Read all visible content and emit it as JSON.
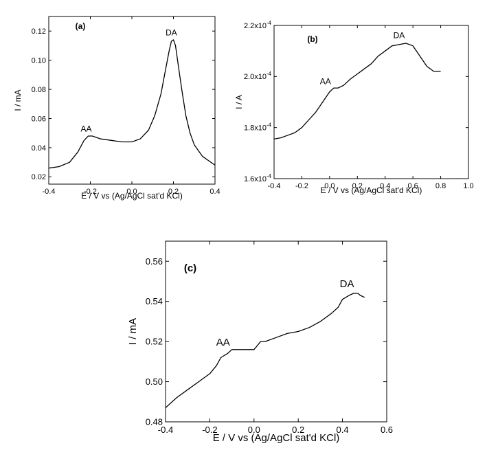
{
  "chart_data": [
    {
      "type": "line",
      "panel_label": "(a)",
      "xlabel": "E / V vs (Ag/AgCl sat'd KCl)",
      "ylabel": "I / mA",
      "xlim": [
        -0.4,
        0.4
      ],
      "ylim": [
        0.015,
        0.13
      ],
      "xticks": [
        -0.4,
        -0.2,
        0.0,
        0.2,
        0.4
      ],
      "xtick_labels": [
        "-0.4",
        "-0.2",
        "0.0",
        "0.2",
        "0.4"
      ],
      "yticks": [
        0.02,
        0.04,
        0.06,
        0.08,
        0.1,
        0.12
      ],
      "ytick_labels": [
        "0.02",
        "0.04",
        "0.06",
        "0.08",
        "0.10",
        "0.12"
      ],
      "grid": false,
      "annotations": [
        {
          "text": "AA",
          "x": -0.22,
          "y": 0.051
        },
        {
          "text": "DA",
          "x": 0.19,
          "y": 0.117
        }
      ],
      "series": [
        {
          "x": [
            -0.4,
            -0.35,
            -0.3,
            -0.26,
            -0.23,
            -0.21,
            -0.19,
            -0.15,
            -0.1,
            -0.05,
            0.0,
            0.04,
            0.08,
            0.11,
            0.14,
            0.16,
            0.18,
            0.19,
            0.2,
            0.21,
            0.22,
            0.24,
            0.26,
            0.28,
            0.3,
            0.34,
            0.4
          ],
          "y": [
            0.026,
            0.027,
            0.03,
            0.037,
            0.045,
            0.048,
            0.048,
            0.046,
            0.045,
            0.044,
            0.044,
            0.046,
            0.052,
            0.062,
            0.077,
            0.092,
            0.107,
            0.113,
            0.114,
            0.11,
            0.1,
            0.08,
            0.062,
            0.05,
            0.042,
            0.034,
            0.028
          ]
        }
      ]
    },
    {
      "type": "line",
      "panel_label": "(b)",
      "xlabel": "E / V vs (Ag/AgCl sat'd KCl)",
      "ylabel": "I / A",
      "xlim": [
        -0.4,
        1.0
      ],
      "ylim": [
        0.00016,
        0.00022
      ],
      "xticks": [
        -0.4,
        -0.2,
        0.0,
        0.2,
        0.4,
        0.6,
        0.8,
        1.0
      ],
      "xtick_labels": [
        "-0.4",
        "-0.2",
        "0.0",
        "0.2",
        "0.4",
        "0.6",
        "0.8",
        "1.0"
      ],
      "yticks": [
        0.00016,
        0.00018,
        0.0002,
        0.00022
      ],
      "ytick_mantissas": [
        "1.6x10",
        "1.8x10",
        "2.0x10",
        "2.2x10"
      ],
      "ytick_exponents": [
        "-4",
        "-4",
        "-4",
        "-4"
      ],
      "grid": false,
      "annotations": [
        {
          "text": "AA",
          "x": -0.03,
          "y": 0.000197
        },
        {
          "text": "DA",
          "x": 0.5,
          "y": 0.000215
        }
      ],
      "series": [
        {
          "x": [
            -0.4,
            -0.35,
            -0.3,
            -0.25,
            -0.2,
            -0.15,
            -0.1,
            -0.05,
            0.0,
            0.03,
            0.06,
            0.1,
            0.15,
            0.2,
            0.25,
            0.3,
            0.35,
            0.4,
            0.45,
            0.5,
            0.55,
            0.6,
            0.65,
            0.7,
            0.75,
            0.8
          ],
          "y": [
            0.0001755,
            0.000176,
            0.000177,
            0.000178,
            0.00018,
            0.000183,
            0.000186,
            0.00019,
            0.000194,
            0.0001955,
            0.0001955,
            0.0001965,
            0.000199,
            0.000201,
            0.000203,
            0.000205,
            0.000208,
            0.00021,
            0.000212,
            0.0002125,
            0.000213,
            0.000212,
            0.000208,
            0.000204,
            0.000202,
            0.000202
          ]
        }
      ]
    },
    {
      "type": "line",
      "panel_label": "(c)",
      "xlabel": "E / V vs (Ag/AgCl sat'd KCl)",
      "ylabel": "I / mA",
      "xlim": [
        -0.4,
        0.6
      ],
      "ylim": [
        0.48,
        0.57
      ],
      "xticks": [
        -0.4,
        -0.2,
        0.0,
        0.2,
        0.4,
        0.6
      ],
      "xtick_labels": [
        "-0.4",
        "-0.2",
        "0.0",
        "0.2",
        "0.4",
        "0.6"
      ],
      "yticks": [
        0.48,
        0.5,
        0.52,
        0.54,
        0.56
      ],
      "ytick_labels": [
        "0.48",
        "0.50",
        "0.52",
        "0.54",
        "0.56"
      ],
      "grid": false,
      "annotations": [
        {
          "text": "AA",
          "x": -0.14,
          "y": 0.518
        },
        {
          "text": "DA",
          "x": 0.42,
          "y": 0.547
        }
      ],
      "series": [
        {
          "x": [
            -0.4,
            -0.35,
            -0.3,
            -0.25,
            -0.2,
            -0.17,
            -0.15,
            -0.12,
            -0.1,
            -0.05,
            0.0,
            0.03,
            0.05,
            0.1,
            0.15,
            0.2,
            0.25,
            0.3,
            0.35,
            0.38,
            0.4,
            0.43,
            0.45,
            0.47,
            0.48,
            0.5
          ],
          "y": [
            0.487,
            0.492,
            0.496,
            0.5,
            0.504,
            0.508,
            0.512,
            0.514,
            0.516,
            0.516,
            0.516,
            0.52,
            0.52,
            0.522,
            0.524,
            0.525,
            0.527,
            0.53,
            0.534,
            0.537,
            0.541,
            0.543,
            0.544,
            0.544,
            0.543,
            0.542
          ]
        }
      ]
    }
  ]
}
